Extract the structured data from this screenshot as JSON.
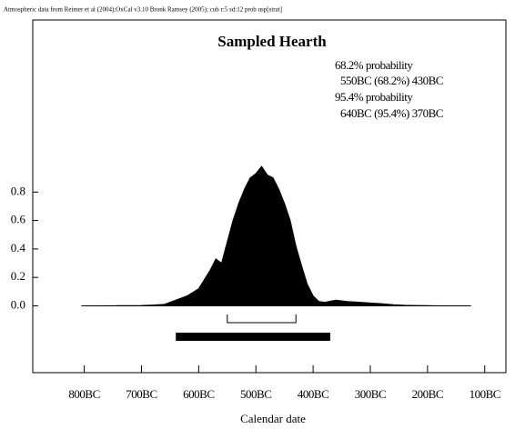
{
  "chart_data": {
    "type": "area",
    "header": "Atmospheric data from Reimer et al (2004);OxCal v3.10 Bronk Ramsey (2005); cub r:5 sd:12 prob usp[strat]",
    "title": "Sampled Hearth",
    "annotations": [
      "68.2% probability",
      "550BC (68.2%) 430BC",
      "95.4% probability",
      "640BC (95.4%) 370BC"
    ],
    "xlabel": "Calendar date",
    "color": "#000000",
    "x": [
      -805,
      -780,
      -740,
      -700,
      -680,
      -660,
      -640,
      -620,
      -600,
      -580,
      -570,
      -560,
      -550,
      -540,
      -530,
      -520,
      -510,
      -500,
      -490,
      -480,
      -470,
      -460,
      -450,
      -440,
      -430,
      -420,
      -410,
      -400,
      -390,
      -380,
      -360,
      -340,
      -320,
      -300,
      -280,
      -260,
      -240,
      -220,
      -200,
      -180,
      -124
    ],
    "values": [
      0,
      0,
      0.001,
      0.002,
      0.005,
      0.01,
      0.04,
      0.07,
      0.12,
      0.25,
      0.33,
      0.3,
      0.45,
      0.6,
      0.72,
      0.82,
      0.9,
      0.93,
      0.98,
      0.92,
      0.9,
      0.82,
      0.72,
      0.6,
      0.42,
      0.28,
      0.15,
      0.07,
      0.03,
      0.025,
      0.04,
      0.03,
      0.025,
      0.02,
      0.015,
      0.008,
      0.004,
      0.002,
      0.001,
      0,
      0
    ],
    "ranges": [
      {
        "from": -550,
        "to": -430
      },
      {
        "from": -640,
        "to": -370
      }
    ],
    "xlim": [
      -890,
      -63
    ],
    "ylim": [
      -0.47,
      2.01
    ],
    "xticks": [
      {
        "value": -800,
        "label": "800BC"
      },
      {
        "value": -700,
        "label": "700BC"
      },
      {
        "value": -600,
        "label": "600BC"
      },
      {
        "value": -500,
        "label": "500BC"
      },
      {
        "value": -400,
        "label": "400BC"
      },
      {
        "value": -300,
        "label": "300BC"
      },
      {
        "value": -200,
        "label": "200BC"
      },
      {
        "value": -100,
        "label": "100BC"
      }
    ],
    "yticks": [
      {
        "value": 0,
        "label": "0.0"
      },
      0.2,
      0.4,
      0.6,
      0.8
    ]
  }
}
